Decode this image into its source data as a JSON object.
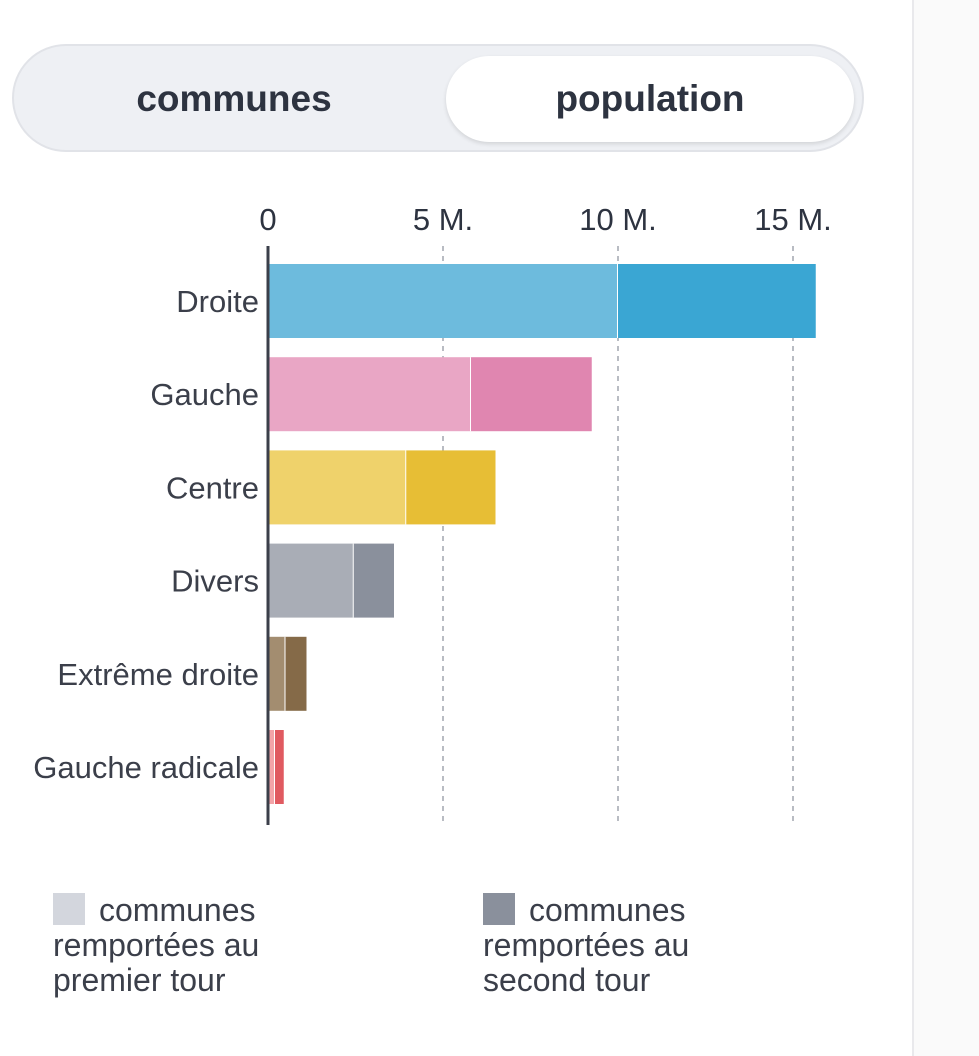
{
  "toggle": {
    "communes_label": "communes",
    "population_label": "population",
    "selected": "population"
  },
  "colors": {
    "first_round": "#d3d6dd",
    "second_round": "#8a909c",
    "axis": "#3b3f4a",
    "grid": "#b9bcc3"
  },
  "chart_data": {
    "type": "bar",
    "orientation": "horizontal",
    "stacked": true,
    "categories": [
      "Droite",
      "Gauche",
      "Centre",
      "Divers",
      "Extrême droite",
      "Gauche radicale"
    ],
    "series": [
      {
        "name": "communes remportées au premier tour",
        "values": [
          10.0,
          5.8,
          3.95,
          2.45,
          0.5,
          0.2
        ],
        "colors": [
          "#6dbbdd",
          "#e9a6c5",
          "#efd26b",
          "#a9adb6",
          "#a38d70",
          "#f3a4a8"
        ]
      },
      {
        "name": "communes remportées au second tour",
        "values": [
          5.65,
          3.45,
          2.55,
          1.15,
          0.6,
          0.25
        ],
        "colors": [
          "#3aa6d3",
          "#e086b0",
          "#e7be35",
          "#8a909c",
          "#856a48",
          "#e05a60"
        ]
      }
    ],
    "x_ticks": [
      0,
      5,
      10,
      15
    ],
    "x_tick_labels": [
      "0",
      "5 M.",
      "10 M.",
      "15 M."
    ],
    "xlim": [
      0,
      16
    ],
    "grid": true,
    "legend_position": "bottom"
  },
  "legend": {
    "first_round_label": "communes remportées au premier tour",
    "second_round_label": "communes remportées au second tour"
  }
}
